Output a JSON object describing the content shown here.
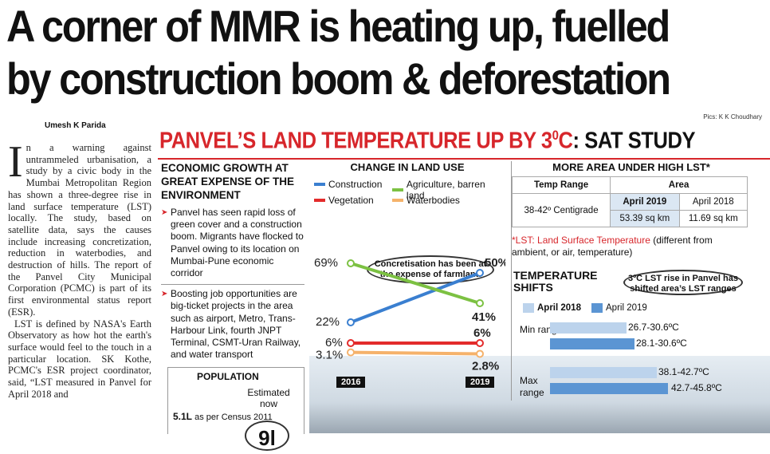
{
  "headline": {
    "line1": "A corner of MMR is heating up, fuelled",
    "line2": "by construction boom & deforestation"
  },
  "photo_credit": "Pics: K K Choudhary",
  "byline": "Umesh K Parida",
  "article": {
    "dropcap": "I",
    "paragraphs": [
      "n a warning against untrammeled urbanisation, a study by a civic body in the Mumbai Metropolitan Region has shown a three-degree rise in land surface temperature (LST) locally. The study, based on satellite data, says the causes include increasing concretization, reduction in waterbodies, and destruction of hills. The report of the Panvel City Municipal Corporation (PCMC) is part of its first environmental status report (ESR).",
      "LST is defined by NASA's Earth Observatory as how hot the earth's surface would feel to the touch in a particular location. SK Kothe, PCMC's ESR project coordinator, said, “LST measured in Panvel for April 2018 and"
    ]
  },
  "graphic": {
    "title_red": "PANVEL’S LAND TEMPERATURE UP BY 3",
    "title_sup": "0",
    "title_tail": "C",
    "title_black": ": SAT STUDY",
    "economic": {
      "heading": "ECONOMIC GROWTH AT GREAT EXPENSE OF THE ENVIRONMENT",
      "points": [
        "Panvel has seen rapid loss of green cover and a construction boom. Migrants have flocked to Panvel owing to its location on Mumbai-Pune economic corridor",
        "Boosting job opportunities are big-ticket projects in the area such as airport, Metro, Trans-Harbour Link, fourth JNPT Terminal, CSMT-Uran Railway, and water transport"
      ]
    },
    "population": {
      "label": "POPULATION",
      "estimated": "Estimated now",
      "census_value": "5.1L",
      "census_text": "as per Census 2011",
      "estimate_partial": "9l"
    },
    "more_area": {
      "title": "MORE AREA UNDER HIGH LST*",
      "col_range": "Temp Range",
      "col_area": "Area",
      "y1": "April 2019",
      "y2": "April 2018",
      "range": "38-42º Centigrade",
      "area_2019": "53.39 sq km",
      "area_2018": "11.69 sq km",
      "note_red": "*LST: Land Surface Temperature",
      "note_black": "(different from ambient, or air, temperature)"
    },
    "shifts": {
      "title": "TEMPERATURE SHIFTS",
      "callout": "3ºC LST rise in Panvel has shifted area’s LST ranges",
      "legend_2018": "April 2018",
      "legend_2019": "April 2019",
      "min_label": "Min range",
      "max_label": "Max range",
      "min_2018": "26.7-30.6ºC",
      "min_2019": "28.1-30.6ºC",
      "max_2018": "38.1-42.7ºC",
      "max_2019": "42.7-45.8ºC",
      "color_2018": "#bcd3ec",
      "color_2019": "#5b95d3"
    }
  },
  "chart_data": {
    "type": "line",
    "title": "CHANGE IN LAND USE",
    "x": [
      "2016",
      "2019"
    ],
    "series": [
      {
        "name": "Construction",
        "values": [
          22,
          50
        ],
        "color": "#3a7fd0",
        "labels": [
          "22%",
          "50%"
        ]
      },
      {
        "name": "Agriculture, barren land",
        "values": [
          69,
          41
        ],
        "color": "#7cc142",
        "labels": [
          "69%",
          "41%"
        ]
      },
      {
        "name": "Vegetation",
        "values": [
          6,
          6
        ],
        "color": "#e32b2b",
        "labels": [
          "6%",
          "6%"
        ]
      },
      {
        "name": "Waterbodies",
        "values": [
          3.1,
          2.8
        ],
        "color": "#f5b26b",
        "labels": [
          "3.1%",
          "2.8%"
        ]
      }
    ],
    "annotation": "Concretisation has been at the expense of farmland",
    "ylim": [
      0,
      80
    ]
  }
}
